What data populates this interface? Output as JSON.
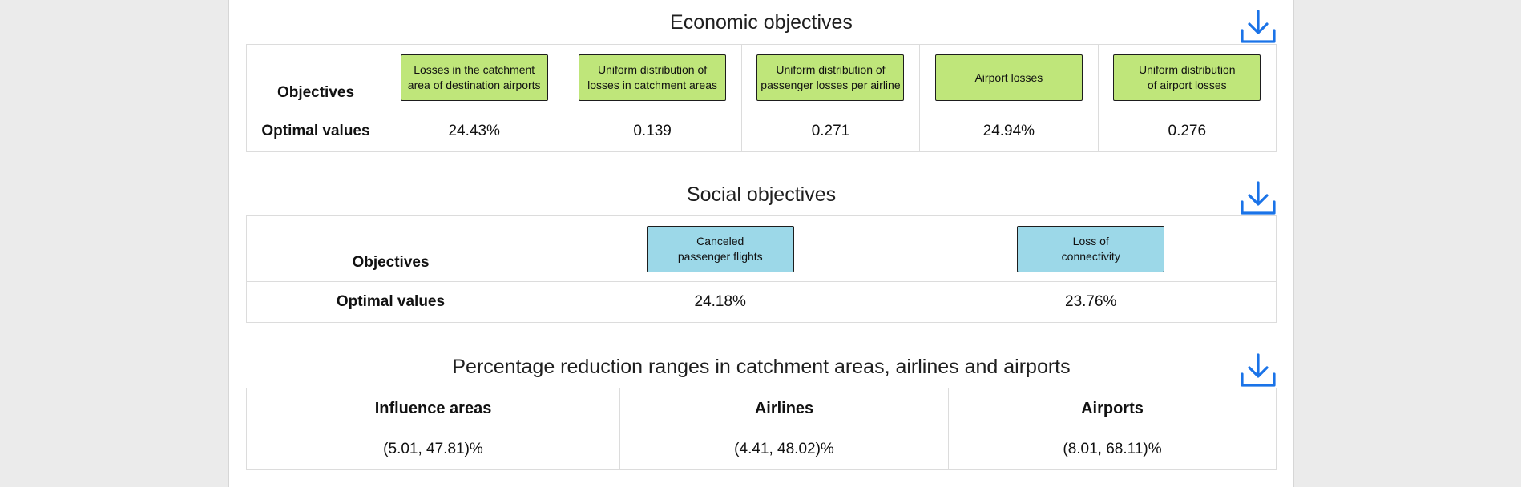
{
  "colors": {
    "accent": "#1a73e8",
    "economic_box": "#bfe67a",
    "social_box": "#9cd8e8"
  },
  "economic": {
    "title": "Economic objectives",
    "download_icon": "download-icon",
    "row_header_objectives": "Objectives",
    "row_header_values": "Optimal values",
    "objectives": [
      {
        "label": "Losses in the catchment\narea of destination airports",
        "value": "24.43%"
      },
      {
        "label": "Uniform distribution of\nlosses in catchment areas",
        "value": "0.139"
      },
      {
        "label": "Uniform distribution of\npassenger losses per airline",
        "value": "0.271"
      },
      {
        "label": "Airport losses",
        "value": "24.94%"
      },
      {
        "label": "Uniform distribution\nof airport losses",
        "value": "0.276"
      }
    ]
  },
  "social": {
    "title": "Social objectives",
    "download_icon": "download-icon",
    "row_header_objectives": "Objectives",
    "row_header_values": "Optimal values",
    "objectives": [
      {
        "label": "Canceled\npassenger flights",
        "value": "24.18%"
      },
      {
        "label": "Loss of\nconnectivity",
        "value": "23.76%"
      }
    ]
  },
  "reduction": {
    "title": "Percentage reduction ranges in catchment areas, airlines and airports",
    "download_icon": "download-icon",
    "headers": [
      "Influence areas",
      "Airlines",
      "Airports"
    ],
    "values": [
      "(5.01, 47.81)%",
      "(4.41, 48.02)%",
      "(8.01, 68.11)%"
    ]
  }
}
